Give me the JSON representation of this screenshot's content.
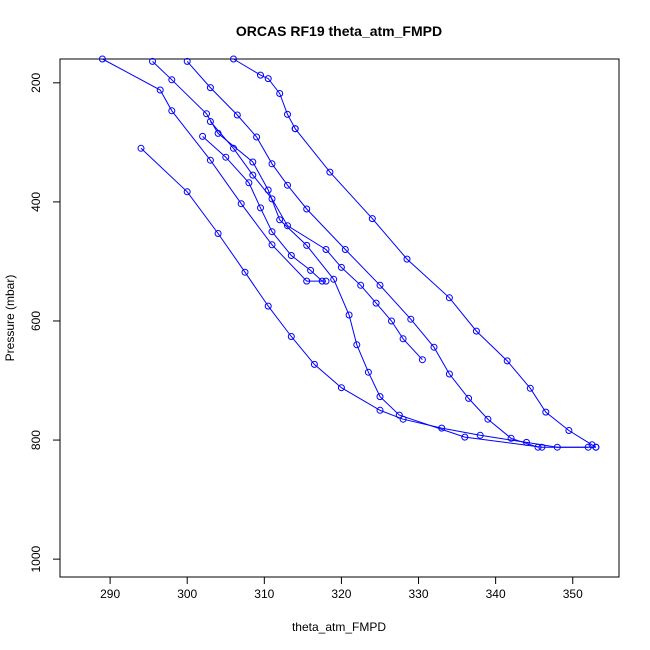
{
  "chart_data": {
    "type": "line",
    "title": "ORCAS RF19 theta_atm_FMPD",
    "xlabel": "theta_atm_FMPD",
    "ylabel": "Pressure (mbar)",
    "xlim": [
      283.5,
      356
    ],
    "ylim": [
      1030,
      160
    ],
    "y_reversed": true,
    "grid": false,
    "xticks": [
      290,
      300,
      310,
      320,
      330,
      340,
      350
    ],
    "yticks": [
      200,
      400,
      600,
      800,
      1000
    ],
    "colors": {
      "series": "#0000ff"
    },
    "series": [
      {
        "points": [
          [
            294,
            310
          ],
          [
            300,
            383
          ],
          [
            304,
            453
          ],
          [
            307.5,
            518
          ],
          [
            310.5,
            575
          ],
          [
            313.5,
            626
          ],
          [
            316.5,
            673
          ],
          [
            320,
            712
          ],
          [
            325,
            750
          ],
          [
            328,
            765
          ],
          [
            333,
            780
          ],
          [
            338,
            792
          ],
          [
            344,
            804
          ],
          [
            348,
            812
          ],
          [
            353,
            812
          ]
        ]
      },
      {
        "points": [
          [
            289,
            160
          ],
          [
            296.5,
            212
          ],
          [
            298,
            247
          ],
          [
            303,
            330
          ],
          [
            307,
            403
          ],
          [
            311,
            472
          ],
          [
            315.5,
            533
          ],
          [
            318,
            533
          ]
        ]
      },
      {
        "points": [
          [
            295.5,
            164
          ],
          [
            298,
            195
          ],
          [
            302.5,
            252
          ],
          [
            304,
            285
          ],
          [
            308.5,
            333
          ],
          [
            310.5,
            380
          ],
          [
            312,
            430
          ],
          [
            315.5,
            473
          ],
          [
            319,
            530
          ],
          [
            321,
            590
          ],
          [
            322,
            640
          ],
          [
            323.5,
            686
          ],
          [
            325,
            727
          ],
          [
            327.5,
            758
          ],
          [
            336,
            795
          ],
          [
            346,
            812
          ],
          [
            352,
            812
          ]
        ]
      },
      {
        "points": [
          [
            300,
            164
          ],
          [
            303,
            208
          ],
          [
            306.5,
            254
          ],
          [
            309,
            291
          ],
          [
            311,
            336
          ],
          [
            313,
            372
          ],
          [
            315.5,
            412
          ],
          [
            320.5,
            480
          ],
          [
            325,
            540
          ],
          [
            329,
            597
          ],
          [
            332,
            644
          ],
          [
            334,
            689
          ],
          [
            336.5,
            730
          ],
          [
            339,
            765
          ],
          [
            342,
            797
          ],
          [
            345.5,
            812
          ]
        ]
      },
      {
        "points": [
          [
            306,
            160
          ],
          [
            309.5,
            187
          ],
          [
            310.5,
            193
          ],
          [
            312,
            218
          ],
          [
            313,
            253
          ],
          [
            314,
            277
          ],
          [
            314,
            277
          ],
          [
            318.5,
            350
          ],
          [
            324,
            428
          ],
          [
            328.5,
            496
          ],
          [
            334,
            561
          ],
          [
            337.5,
            617
          ],
          [
            341.5,
            667
          ],
          [
            344.5,
            713
          ],
          [
            346.5,
            753
          ],
          [
            349.5,
            784
          ],
          [
            352.5,
            808
          ],
          [
            353,
            812
          ]
        ]
      },
      {
        "points": [
          [
            302,
            290
          ],
          [
            305,
            325
          ],
          [
            308,
            368
          ],
          [
            309.5,
            410
          ],
          [
            311,
            450
          ],
          [
            313.5,
            490
          ],
          [
            316,
            515
          ],
          [
            317.5,
            533
          ]
        ]
      },
      {
        "points": [
          [
            303,
            265
          ],
          [
            306,
            310
          ],
          [
            308.5,
            355
          ],
          [
            311,
            395
          ],
          [
            313,
            440
          ],
          [
            318,
            480
          ],
          [
            320,
            510
          ],
          [
            322.5,
            540
          ],
          [
            324.5,
            570
          ],
          [
            326.5,
            600
          ],
          [
            328,
            630
          ],
          [
            330.5,
            665
          ]
        ]
      }
    ]
  }
}
